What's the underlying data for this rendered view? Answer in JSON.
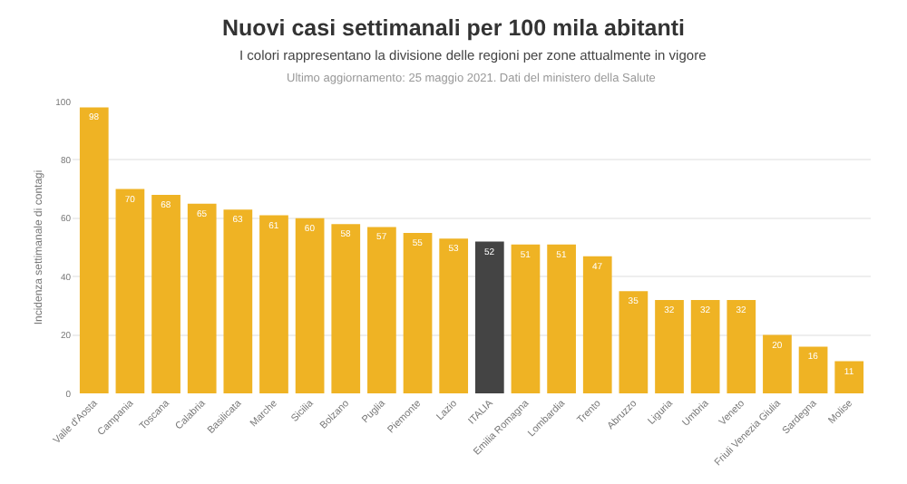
{
  "chart_data": {
    "type": "bar",
    "title": "Nuovi casi settimanali per 100 mila abitanti",
    "subtitle": "I colori rappresentano la divisione delle regioni per zone attualmente in vigore",
    "annotations": [
      "Ultimo aggiornamento: 25 maggio 2021. Dati del ministero della Salute"
    ],
    "ylabel": "Incidenza settimanale di contagi",
    "categories": [
      "Valle d'Aosta",
      "Campania",
      "Toscana",
      "Calabria",
      "Basilicata",
      "Marche",
      "Sicilia",
      "Bolzano",
      "Puglia",
      "Piemonte",
      "Lazio",
      "ITALIA",
      "Emilia Romagna",
      "Lombardia",
      "Trento",
      "Abruzzo",
      "Liguria",
      "Umbria",
      "Veneto",
      "Friuli Venezia Giulia",
      "Sardegna",
      "Molise"
    ],
    "values": [
      98,
      70,
      68,
      65,
      63,
      61,
      60,
      58,
      57,
      55,
      53,
      52,
      51,
      51,
      47,
      35,
      32,
      32,
      32,
      20,
      16,
      11
    ],
    "colors": [
      "#efb324",
      "#efb324",
      "#efb324",
      "#efb324",
      "#efb324",
      "#efb324",
      "#efb324",
      "#efb324",
      "#efb324",
      "#efb324",
      "#efb324",
      "#444444",
      "#efb324",
      "#efb324",
      "#efb324",
      "#efb324",
      "#efb324",
      "#efb324",
      "#efb324",
      "#efb324",
      "#efb324",
      "#efb324"
    ],
    "ylim": [
      0,
      100
    ],
    "yticks": [
      0,
      20,
      40,
      60,
      80,
      100
    ],
    "grid": "y",
    "data_labels": true,
    "legend": false
  }
}
